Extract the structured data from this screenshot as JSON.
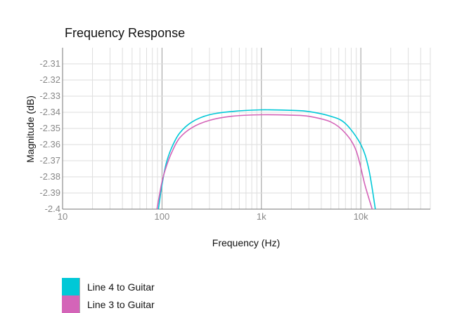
{
  "chart_data": {
    "type": "line",
    "title": "Frequency Response",
    "xlabel": "Frequency (Hz)",
    "ylabel": "Magnitude (dB)",
    "x_scale": "log",
    "xlim": [
      10,
      50000
    ],
    "ylim": [
      -2.4,
      -2.3
    ],
    "x_ticks": [
      {
        "value": 10,
        "label": "10"
      },
      {
        "value": 100,
        "label": "100"
      },
      {
        "value": 1000,
        "label": "1k"
      },
      {
        "value": 10000,
        "label": "10k"
      }
    ],
    "y_ticks": [
      {
        "value": -2.31,
        "label": "-2.31"
      },
      {
        "value": -2.32,
        "label": "-2.32"
      },
      {
        "value": -2.33,
        "label": "-2.33"
      },
      {
        "value": -2.34,
        "label": "-2.34"
      },
      {
        "value": -2.35,
        "label": "-2.35"
      },
      {
        "value": -2.36,
        "label": "-2.36"
      },
      {
        "value": -2.37,
        "label": "-2.37"
      },
      {
        "value": -2.38,
        "label": "-2.38"
      },
      {
        "value": -2.39,
        "label": "-2.39"
      },
      {
        "value": -2.4,
        "label": "-2.4"
      }
    ],
    "grid": true,
    "legend_position": "bottom-left",
    "series": [
      {
        "name": "Line 4 to Guitar",
        "color": "#00c8d7",
        "x": [
          92,
          100,
          110,
          125,
          150,
          200,
          300,
          500,
          1000,
          2000,
          3000,
          5000,
          7000,
          10000,
          12000,
          14000
        ],
        "y": [
          -2.4,
          -2.385,
          -2.372,
          -2.362,
          -2.353,
          -2.346,
          -2.3415,
          -2.3395,
          -2.3385,
          -2.3388,
          -2.3395,
          -2.3425,
          -2.347,
          -2.36,
          -2.375,
          -2.4
        ]
      },
      {
        "name": "Line 3 to Guitar",
        "color": "#d464b8",
        "x": [
          89,
          100,
          110,
          125,
          150,
          200,
          300,
          500,
          1000,
          2000,
          3000,
          5000,
          7000,
          9000,
          11000,
          13000
        ],
        "y": [
          -2.4,
          -2.383,
          -2.374,
          -2.365,
          -2.356,
          -2.3495,
          -2.345,
          -2.3425,
          -2.3415,
          -2.3418,
          -2.3425,
          -2.346,
          -2.353,
          -2.364,
          -2.385,
          -2.4
        ]
      }
    ]
  }
}
